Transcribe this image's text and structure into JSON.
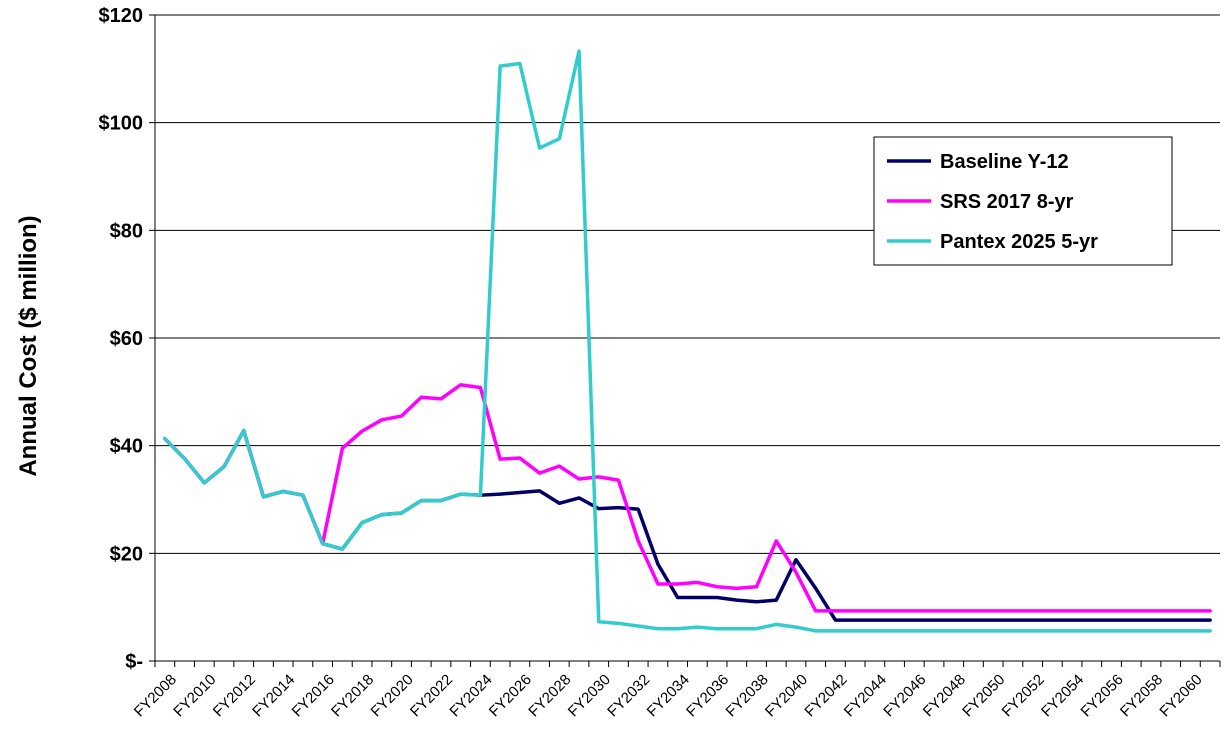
{
  "chart_data": {
    "type": "line",
    "title": "",
    "ylabel": "Annual Cost ($ million)",
    "xlabel": "",
    "ylim": [
      0,
      120
    ],
    "yticks": [
      {
        "value": 0,
        "label": "$-"
      },
      {
        "value": 20,
        "label": "$20"
      },
      {
        "value": 40,
        "label": "$40"
      },
      {
        "value": 60,
        "label": "$60"
      },
      {
        "value": 80,
        "label": "$80"
      },
      {
        "value": 100,
        "label": "$100"
      },
      {
        "value": 120,
        "label": "$120"
      }
    ],
    "grid": true,
    "legend_position": "right",
    "x": [
      "FY2008",
      "FY2009",
      "FY2010",
      "FY2011",
      "FY2012",
      "FY2013",
      "FY2014",
      "FY2015",
      "FY2016",
      "FY2017",
      "FY2018",
      "FY2019",
      "FY2020",
      "FY2021",
      "FY2022",
      "FY2023",
      "FY2024",
      "FY2025",
      "FY2026",
      "FY2027",
      "FY2028",
      "FY2029",
      "FY2030",
      "FY2031",
      "FY2032",
      "FY2033",
      "FY2034",
      "FY2035",
      "FY2036",
      "FY2037",
      "FY2038",
      "FY2039",
      "FY2040",
      "FY2041",
      "FY2042",
      "FY2043",
      "FY2044",
      "FY2045",
      "FY2046",
      "FY2047",
      "FY2048",
      "FY2049",
      "FY2050",
      "FY2051",
      "FY2052",
      "FY2053",
      "FY2054",
      "FY2055",
      "FY2056",
      "FY2057",
      "FY2058",
      "FY2059",
      "FY2060",
      "FY2061"
    ],
    "xtick_labels": [
      "FY2008",
      "FY2010",
      "FY2012",
      "FY2014",
      "FY2016",
      "FY2018",
      "FY2020",
      "FY2022",
      "FY2024",
      "FY2026",
      "FY2028",
      "FY2030",
      "FY2032",
      "FY2034",
      "FY2036",
      "FY2038",
      "FY2040",
      "FY2042",
      "FY2044",
      "FY2046",
      "FY2048",
      "FY2050",
      "FY2052",
      "FY2054",
      "FY2056",
      "FY2058",
      "FY2060"
    ],
    "series": [
      {
        "name": "Baseline Y-12",
        "color": "#000066",
        "values": [
          41.3,
          37.6,
          33.1,
          36.1,
          42.8,
          30.5,
          31.5,
          30.8,
          21.8,
          20.8,
          25.7,
          27.2,
          27.5,
          29.8,
          29.8,
          31.0,
          30.8,
          31.0,
          31.3,
          31.6,
          29.3,
          30.3,
          28.3,
          28.5,
          28.2,
          18.0,
          11.8,
          11.8,
          11.8,
          11.3,
          11.0,
          11.3,
          18.8,
          13.5,
          7.6,
          7.6,
          7.6,
          7.6,
          7.6,
          7.6,
          7.6,
          7.6,
          7.6,
          7.6,
          7.6,
          7.6,
          7.6,
          7.6,
          7.6,
          7.6,
          7.6,
          7.6,
          7.6,
          7.6
        ]
      },
      {
        "name": "SRS 2017 8-yr",
        "color": "#FF00FF",
        "values": [
          41.3,
          37.6,
          33.1,
          36.1,
          42.8,
          30.5,
          31.5,
          30.8,
          21.8,
          39.5,
          42.7,
          44.8,
          45.5,
          49.0,
          48.7,
          51.3,
          50.8,
          37.5,
          37.7,
          34.9,
          36.2,
          33.8,
          34.2,
          33.6,
          22.3,
          14.3,
          14.3,
          14.6,
          13.8,
          13.5,
          13.8,
          22.3,
          16.5,
          9.3,
          9.3,
          9.3,
          9.3,
          9.3,
          9.3,
          9.3,
          9.3,
          9.3,
          9.3,
          9.3,
          9.3,
          9.3,
          9.3,
          9.3,
          9.3,
          9.3,
          9.3,
          9.3,
          9.3,
          9.3
        ]
      },
      {
        "name": "Pantex 2025 5-yr",
        "color": "#33CCCC",
        "values": [
          41.3,
          37.6,
          33.1,
          36.1,
          42.8,
          30.5,
          31.5,
          30.8,
          21.8,
          20.8,
          25.7,
          27.2,
          27.5,
          29.8,
          29.8,
          31.0,
          30.8,
          110.5,
          111.0,
          95.3,
          97.0,
          113.3,
          7.3,
          7.0,
          6.5,
          6.0,
          6.0,
          6.3,
          6.0,
          6.0,
          6.0,
          6.8,
          6.3,
          5.6,
          5.6,
          5.6,
          5.6,
          5.6,
          5.6,
          5.6,
          5.6,
          5.6,
          5.6,
          5.6,
          5.6,
          5.6,
          5.6,
          5.6,
          5.6,
          5.6,
          5.6,
          5.6,
          5.6,
          5.6
        ]
      }
    ]
  }
}
